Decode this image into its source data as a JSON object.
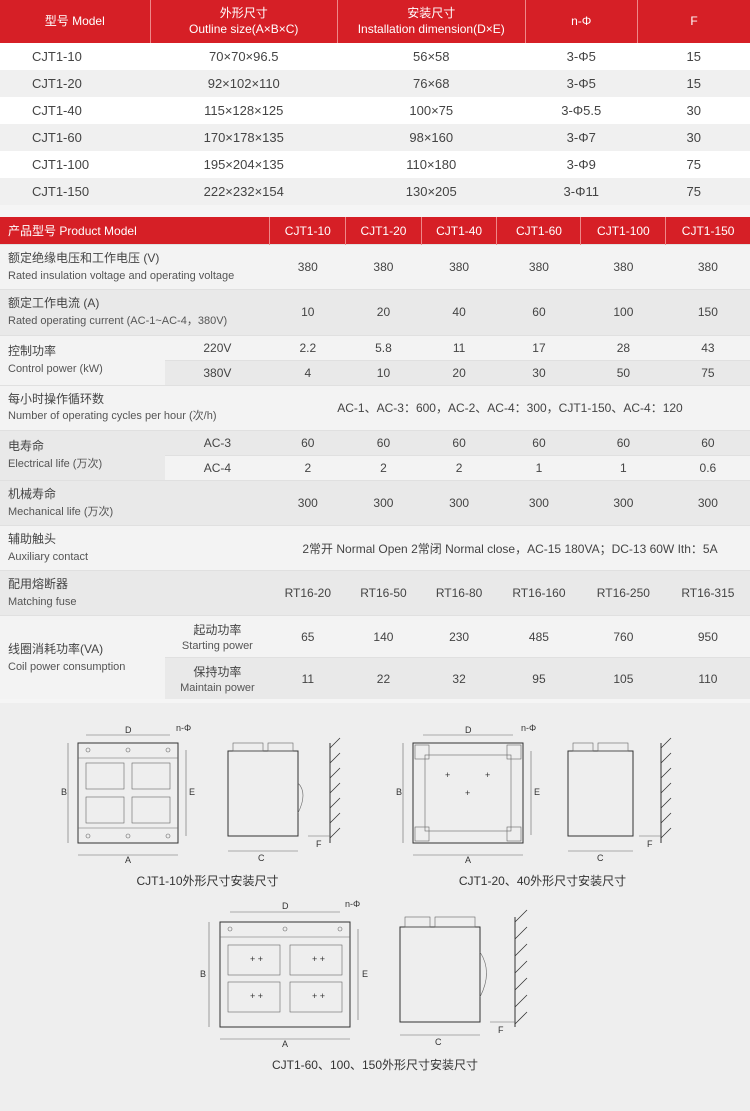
{
  "colors": {
    "header_bg": "#d61f26",
    "header_fg": "#ffffff",
    "row_alt1": "#ffffff",
    "row_alt2": "#f0f0f0",
    "text": "#444444",
    "border": "#e0e0e0"
  },
  "table1": {
    "headers": {
      "model": {
        "cn": "型号",
        "en": "Model"
      },
      "outline": {
        "cn": "外形尺寸",
        "en": "Outline size(A×B×C)"
      },
      "install": {
        "cn": "安装尺寸",
        "en": "Installation dimension(D×E)"
      },
      "nphi": "n-Φ",
      "f": "F"
    },
    "rows": [
      {
        "model": "CJT1-10",
        "outline": "70×70×96.5",
        "install": "56×58",
        "nphi": "3-Φ5",
        "f": "15"
      },
      {
        "model": "CJT1-20",
        "outline": "92×102×110",
        "install": "76×68",
        "nphi": "3-Φ5",
        "f": "15"
      },
      {
        "model": "CJT1-40",
        "outline": "115×128×125",
        "install": "100×75",
        "nphi": "3-Φ5.5",
        "f": "30"
      },
      {
        "model": "CJT1-60",
        "outline": "170×178×135",
        "install": "98×160",
        "nphi": "3-Φ7",
        "f": "30"
      },
      {
        "model": "CJT1-100",
        "outline": "195×204×135",
        "install": "110×180",
        "nphi": "3-Φ9",
        "f": "75"
      },
      {
        "model": "CJT1-150",
        "outline": "222×232×154",
        "install": "130×205",
        "nphi": "3-Φ11",
        "f": "75"
      }
    ]
  },
  "table2": {
    "header_label": {
      "cn": "产品型号",
      "en": "Product Model"
    },
    "models": [
      "CJT1-10",
      "CJT1-20",
      "CJT1-40",
      "CJT1-60",
      "CJT1-100",
      "CJT1-150"
    ],
    "row_voltage": {
      "cn": "额定绝缘电压和工作电压 (V)",
      "en": "Rated insulation voltage and operating voltage",
      "vals": [
        "380",
        "380",
        "380",
        "380",
        "380",
        "380"
      ]
    },
    "row_current": {
      "cn": "额定工作电流 (A)",
      "en": "Rated operating current (AC-1~AC-4，380V)",
      "vals": [
        "10",
        "20",
        "40",
        "60",
        "100",
        "150"
      ]
    },
    "row_control": {
      "label": {
        "cn": "控制功率",
        "en": "Control power (kW)"
      },
      "sub1": {
        "label": "220V",
        "vals": [
          "2.2",
          "5.8",
          "11",
          "17",
          "28",
          "43"
        ]
      },
      "sub2": {
        "label": "380V",
        "vals": [
          "4",
          "10",
          "20",
          "30",
          "50",
          "75"
        ]
      }
    },
    "row_cycles": {
      "cn": "每小时操作循环数",
      "en": "Number of operating cycles per hour (次/h)",
      "merged": "AC-1、AC-3：600，AC-2、AC-4：300，CJT1-150、AC-4：120"
    },
    "row_elec_life": {
      "label": {
        "cn": "电寿命",
        "en": "Electrical life (万次)"
      },
      "sub1": {
        "label": "AC-3",
        "vals": [
          "60",
          "60",
          "60",
          "60",
          "60",
          "60"
        ]
      },
      "sub2": {
        "label": "AC-4",
        "vals": [
          "2",
          "2",
          "2",
          "1",
          "1",
          "0.6"
        ]
      }
    },
    "row_mech_life": {
      "cn": "机械寿命",
      "en": "Mechanical life (万次)",
      "vals": [
        "300",
        "300",
        "300",
        "300",
        "300",
        "300"
      ]
    },
    "row_aux": {
      "cn": "辅助触头",
      "en": "Auxiliary contact",
      "merged": "2常开 Normal Open  2常闭 Normal close，AC-15   180VA；DC-13   60W   Ith：5A"
    },
    "row_fuse": {
      "cn": "配用熔断器",
      "en": "Matching fuse",
      "vals": [
        "RT16-20",
        "RT16-50",
        "RT16-80",
        "RT16-160",
        "RT16-250",
        "RT16-315"
      ]
    },
    "row_coil": {
      "label": {
        "cn": "线圈消耗功率(VA)",
        "en": "Coil power consumption"
      },
      "sub1": {
        "cn": "起动功率",
        "en": "Starting power",
        "vals": [
          "65",
          "140",
          "230",
          "485",
          "760",
          "950"
        ]
      },
      "sub2": {
        "cn": "保持功率",
        "en": "Maintain power",
        "vals": [
          "11",
          "22",
          "32",
          "95",
          "105",
          "110"
        ]
      }
    }
  },
  "diagrams": {
    "caption1": "CJT1-10外形尺寸安装尺寸",
    "caption2": "CJT1-20、40外形尺寸安装尺寸",
    "caption3": "CJT1-60、100、150外形尺寸安装尺寸",
    "dim_labels": {
      "A": "A",
      "B": "B",
      "C": "C",
      "D": "D",
      "E": "E",
      "F": "F",
      "nphi": "n-Φ"
    }
  }
}
